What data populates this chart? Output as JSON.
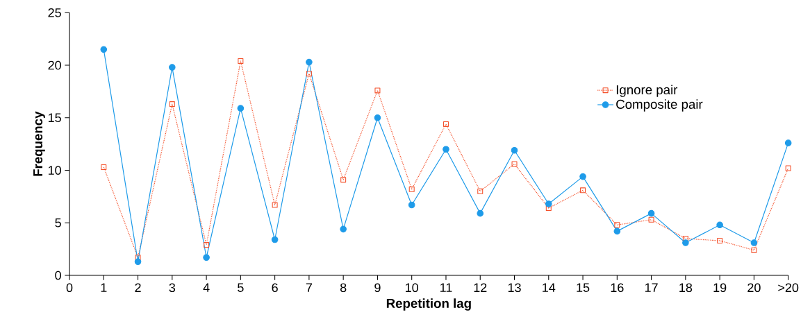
{
  "chart_data": {
    "type": "line",
    "xlabel": "Repetition lag",
    "ylabel": "Frequency",
    "categories": [
      "0",
      "1",
      "2",
      "3",
      "4",
      "5",
      "6",
      "7",
      "8",
      "9",
      "10",
      "11",
      "12",
      "13",
      "14",
      "15",
      "16",
      "17",
      "18",
      "19",
      "20",
      ">20"
    ],
    "series": [
      {
        "name": "Ignore pair",
        "color": "#f4502a",
        "marker": "square",
        "line_style": "dotted",
        "values": [
          null,
          10.3,
          1.7,
          16.3,
          2.9,
          20.4,
          6.7,
          19.2,
          9.1,
          17.6,
          8.2,
          14.4,
          8.0,
          10.6,
          6.4,
          8.1,
          4.8,
          5.3,
          3.5,
          3.3,
          2.4,
          10.2
        ]
      },
      {
        "name": "Composite pair",
        "color": "#1e9be9",
        "marker": "circle",
        "line_style": "solid",
        "values": [
          null,
          21.5,
          1.3,
          19.8,
          1.7,
          15.9,
          3.4,
          20.3,
          4.4,
          15.0,
          6.7,
          12.0,
          5.9,
          11.9,
          6.8,
          9.4,
          4.2,
          5.9,
          3.1,
          4.8,
          3.1,
          12.6
        ]
      }
    ],
    "ylim": [
      0,
      25
    ],
    "yticks": [
      0,
      5,
      10,
      15,
      20,
      25
    ],
    "grid": false,
    "legend": "right"
  }
}
